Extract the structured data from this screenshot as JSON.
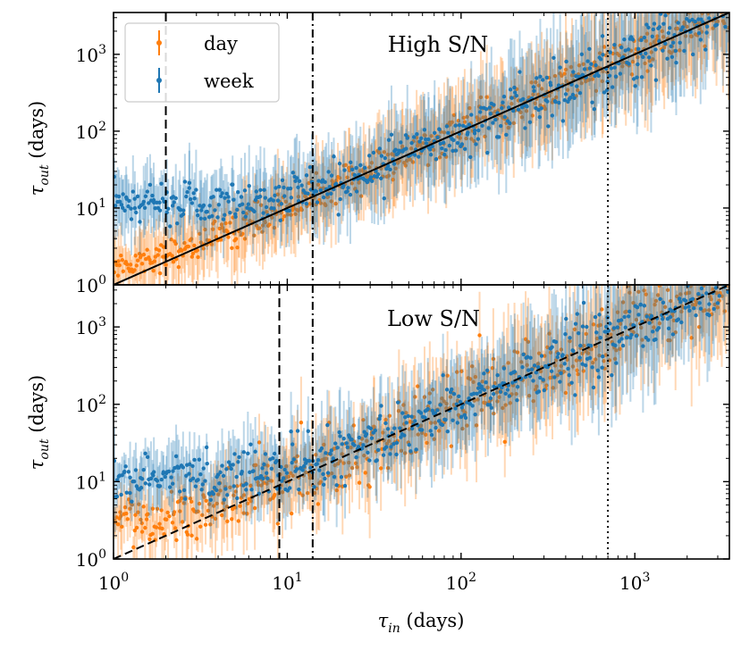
{
  "chart_data": [
    {
      "type": "scatter",
      "panel": "top",
      "annotation": "High S/N",
      "ylabel_base": "τ",
      "ylabel_sub": "out",
      "ylabel_unit": " (days)",
      "xscale": "log",
      "yscale": "log",
      "xlim": [
        1,
        3500
      ],
      "ylim": [
        1,
        3500
      ],
      "ytick_exponents": [
        "0",
        "1",
        "2",
        "3"
      ],
      "reference_lines": [
        {
          "style": "dashed",
          "x": 2
        },
        {
          "style": "dashdot",
          "x": 14
        },
        {
          "style": "dotted",
          "x": 700
        }
      ],
      "identity_line": "solid",
      "series": [
        {
          "name": "day",
          "color": "#ff7f0e",
          "plateau": 1.5,
          "scatter_dex": 0.09
        },
        {
          "name": "week",
          "color": "#1f77b4",
          "plateau": 11,
          "scatter_dex": 0.13
        }
      ]
    },
    {
      "type": "scatter",
      "panel": "bottom",
      "annotation": "Low S/N",
      "ylabel_base": "τ",
      "ylabel_sub": "out",
      "ylabel_unit": " (days)",
      "xscale": "log",
      "yscale": "log",
      "xlim": [
        1,
        3500
      ],
      "ylim": [
        1,
        3500
      ],
      "ytick_exponents": [
        "0",
        "1",
        "2",
        "3"
      ],
      "reference_lines": [
        {
          "style": "dashed",
          "x": 9
        },
        {
          "style": "dashdot",
          "x": 14
        },
        {
          "style": "dotted",
          "x": 700
        }
      ],
      "identity_line": "dashed",
      "series": [
        {
          "name": "day",
          "color": "#ff7f0e",
          "plateau": 3,
          "scatter_dex": 0.17
        },
        {
          "name": "week",
          "color": "#1f77b4",
          "plateau": 11,
          "scatter_dex": 0.14
        }
      ]
    }
  ],
  "legend": {
    "placement": "top-left",
    "entries": [
      {
        "label": "day",
        "color": "#ff7f0e"
      },
      {
        "label": "week",
        "color": "#1f77b4"
      }
    ]
  },
  "xaxis": {
    "label_base": "τ",
    "label_sub": "in",
    "label_unit": " (days)",
    "tick_exponents": [
      "0",
      "1",
      "2",
      "3"
    ]
  },
  "tick_base": "10"
}
